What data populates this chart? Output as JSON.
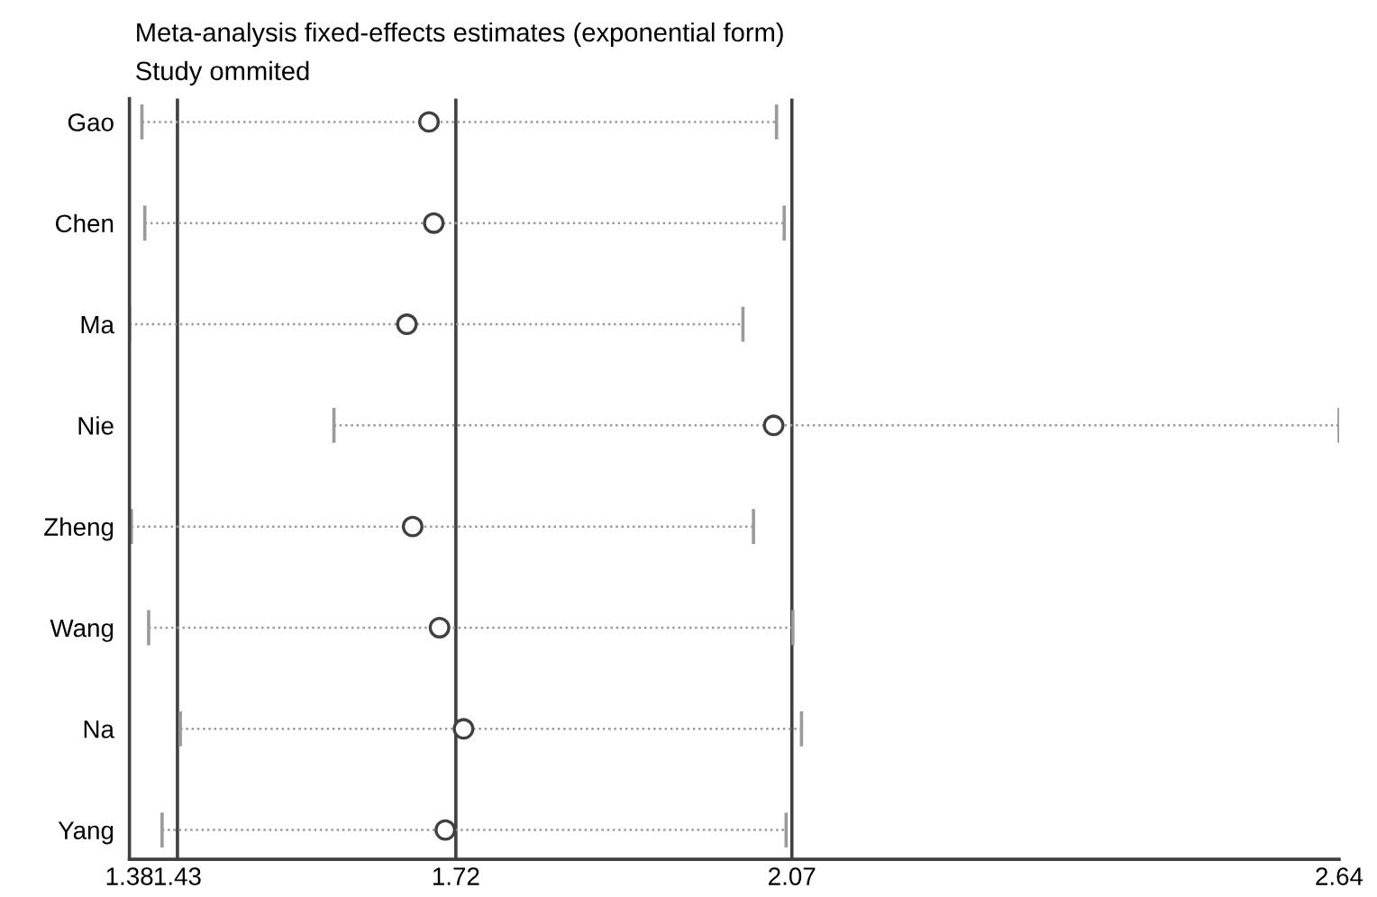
{
  "chart_data": {
    "type": "scatter",
    "orientation": "horizontal",
    "title": "Meta-analysis fixed-effects estimates (exponential form)",
    "subtitle": "Study ommited",
    "categories": [
      "Gao",
      "Chen",
      "Ma",
      "Nie",
      "Zheng",
      "Wang",
      "Na",
      "Yang"
    ],
    "series": [
      {
        "color": "#404040",
        "values": [
          1.692,
          1.697,
          1.669,
          2.051,
          1.675,
          1.703,
          1.728,
          1.709
        ],
        "errors": [
          [
            1.393,
            2.054
          ],
          [
            1.396,
            2.062
          ],
          [
            1.38,
            2.019
          ],
          [
            1.593,
            2.64
          ],
          [
            1.382,
            2.03
          ],
          [
            1.4,
            2.071
          ],
          [
            1.433,
            2.08
          ],
          [
            1.414,
            2.064
          ]
        ]
      }
    ],
    "xlim": [
      1.38,
      2.64
    ],
    "xticks": [
      1.38,
      1.43,
      1.72,
      2.07,
      2.64
    ],
    "ref_lines": [
      {
        "axis": "x",
        "value": 1.43,
        "color": "#404040"
      },
      {
        "axis": "x",
        "value": 1.72,
        "color": "#404040"
      },
      {
        "axis": "x",
        "value": 2.07,
        "color": "#404040"
      }
    ],
    "marker": "circle",
    "grid": false
  }
}
